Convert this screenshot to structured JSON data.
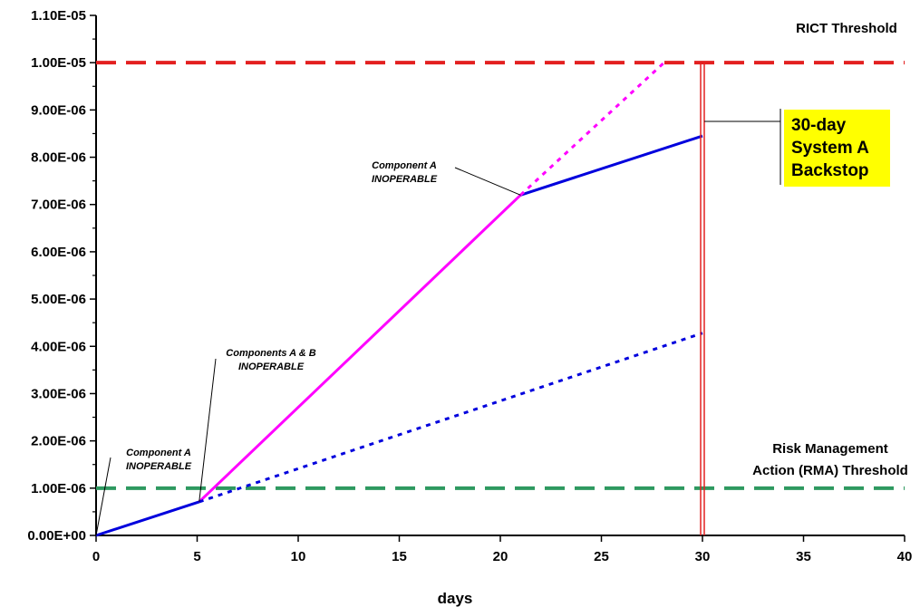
{
  "chart_data": {
    "type": "line",
    "xlabel": "days",
    "ylabel": "",
    "xlim": [
      0,
      40
    ],
    "ylim": [
      0,
      1.1e-05
    ],
    "x_ticks": [
      "0",
      "5",
      "10",
      "15",
      "20",
      "25",
      "30",
      "35",
      "40"
    ],
    "y_ticks": [
      "0.00E+00",
      "1.00E-06",
      "2.00E-06",
      "3.00E-06",
      "4.00E-06",
      "5.00E-06",
      "6.00E-06",
      "7.00E-06",
      "8.00E-06",
      "9.00E-06",
      "1.00E-05",
      "1.10E-05"
    ],
    "series": [
      {
        "color": "#0000dd",
        "style": "solid",
        "points": [
          [
            0,
            0
          ],
          [
            5.1,
            7.1e-07
          ]
        ]
      },
      {
        "color": "#ff00ff",
        "style": "solid",
        "points": [
          [
            5.1,
            7.1e-07
          ],
          [
            21,
            7.2e-06
          ]
        ]
      },
      {
        "color": "#0000dd",
        "style": "solid",
        "points": [
          [
            21,
            7.2e-06
          ],
          [
            30,
            8.45e-06
          ]
        ]
      },
      {
        "color": "#ff00ff",
        "style": "dotted",
        "points": [
          [
            21,
            7.2e-06
          ],
          [
            28.1,
            1e-05
          ]
        ]
      },
      {
        "color": "#0000dd",
        "style": "dotted",
        "points": [
          [
            5.1,
            7.1e-07
          ],
          [
            30,
            4.28e-06
          ]
        ]
      }
    ],
    "thresholds": [
      {
        "label": "RICT Threshold",
        "value": 1e-05,
        "color": "#e32020"
      },
      {
        "label": "Risk Management\nAction (RMA) Threshold",
        "value": 1e-06,
        "color": "#2e9960"
      }
    ],
    "backstop": {
      "x": 30,
      "label": "30-day\nSystem A\nBackstop",
      "color": "#e32020",
      "box_color": "#ffff00"
    },
    "annotations": [
      {
        "text": "Component A\nINOPERABLE",
        "x": 0,
        "y": 0
      },
      {
        "text": "Components A & B\nINOPERABLE",
        "x": 5.1,
        "y": 7.1e-07
      },
      {
        "text": "Component A\nINOPERABLE",
        "x": 21,
        "y": 7.2e-06
      }
    ]
  }
}
